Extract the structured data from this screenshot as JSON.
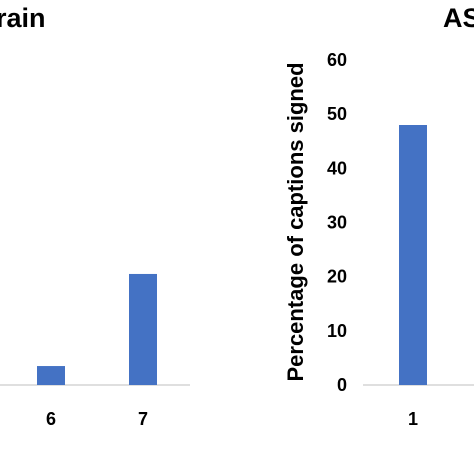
{
  "colors": {
    "bar": "#4472C4",
    "axis": "#BFBFBF",
    "text": "#000000"
  },
  "chart_data": [
    {
      "type": "bar",
      "title": "rain",
      "categories": [
        "6",
        "7"
      ],
      "values": [
        3.5,
        20.5
      ],
      "xlabel": "",
      "ylabel": "",
      "ylim": [
        0,
        60
      ],
      "grid": false,
      "legend": "none"
    },
    {
      "type": "bar",
      "title": "AS",
      "categories": [
        "1"
      ],
      "values": [
        48
      ],
      "xlabel": "",
      "ylabel": "Percentage of captions signed",
      "yticks": [
        "0",
        "10",
        "20",
        "30",
        "40",
        "50",
        "60"
      ],
      "ylim": [
        0,
        60
      ],
      "grid": false,
      "legend": "none"
    }
  ]
}
